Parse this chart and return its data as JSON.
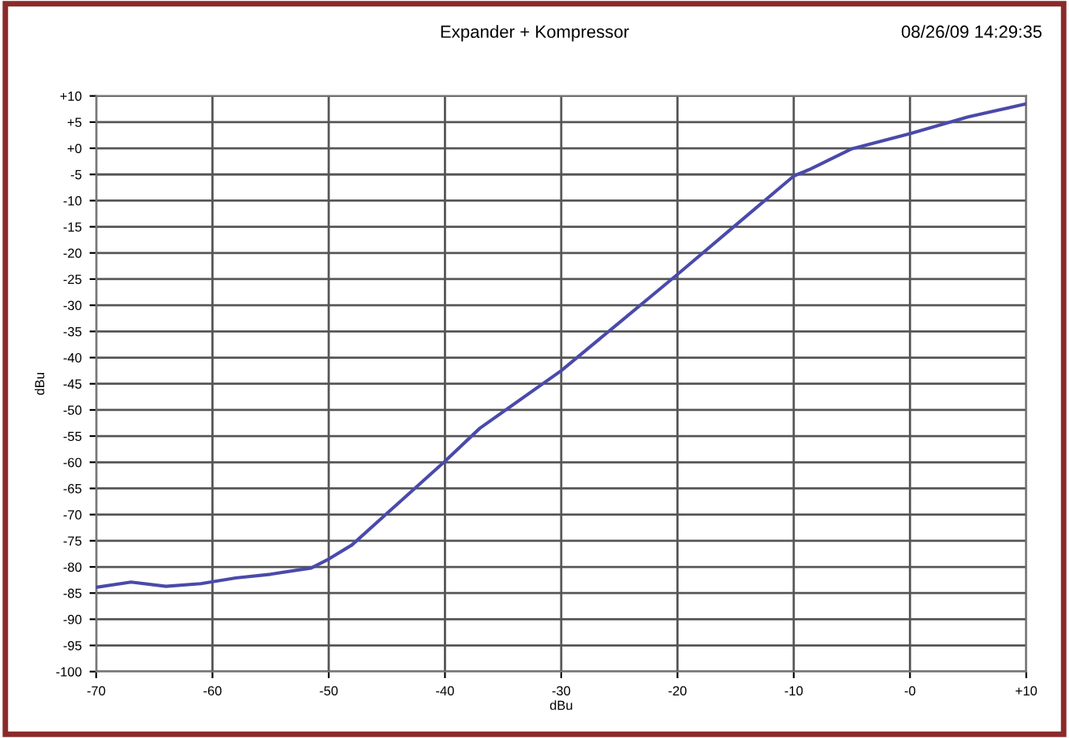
{
  "chart_data": {
    "type": "line",
    "title": "Expander + Kompressor",
    "xlabel": "dBu",
    "ylabel": "dBu",
    "annotations": [
      "08/26/09 14:29:35"
    ],
    "x": [
      -70,
      -67,
      -64,
      -61,
      -58,
      -55,
      -51.5,
      -50,
      -48,
      -45,
      -40,
      -37,
      -30,
      -25,
      -20,
      -15,
      -10,
      -8.7,
      -5,
      0,
      5,
      10
    ],
    "series": [
      {
        "color": "#4a4aaa",
        "values": [
          -83.9,
          -82.9,
          -83.7,
          -83.2,
          -82.1,
          -81.4,
          -80.2,
          -78.5,
          -75.8,
          -69.8,
          -59.8,
          -53.5,
          -42.5,
          -33.3,
          -24.1,
          -14.7,
          -5.3,
          -4.1,
          -0.1,
          2.8,
          6,
          8.5
        ]
      }
    ],
    "xlim": [
      -70,
      10
    ],
    "ylim": [
      -100,
      10
    ],
    "xticks": [
      -70,
      -60,
      -50,
      -40,
      -30,
      -20,
      -10,
      {
        "value": 0,
        "label": "-0"
      },
      {
        "value": 10,
        "label": "+10"
      }
    ],
    "yticks": [
      {
        "value": 10,
        "label": "+10"
      },
      {
        "value": 5,
        "label": "+5"
      },
      {
        "value": 0,
        "label": "+0"
      },
      -5,
      -10,
      -15,
      -20,
      -25,
      -30,
      -35,
      -40,
      -45,
      -50,
      -55,
      -60,
      -65,
      -70,
      -75,
      -80,
      -85,
      -90,
      -95,
      -100
    ],
    "grid": true,
    "marker": "none",
    "line_style": "solid",
    "legend": false
  }
}
